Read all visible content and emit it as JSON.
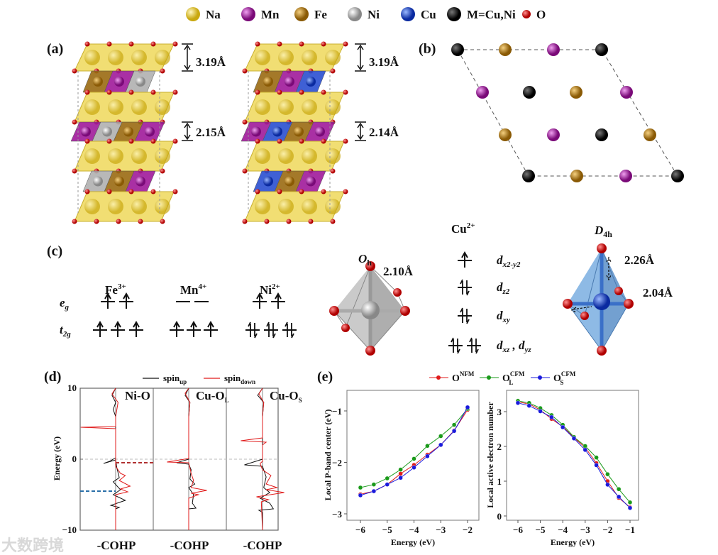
{
  "legend_top": {
    "items": [
      {
        "label": "Na",
        "color": "#e8c62a"
      },
      {
        "label": "Mn",
        "color": "#a0199a"
      },
      {
        "label": "Fe",
        "color": "#b07a10"
      },
      {
        "label": "Ni",
        "color": "#b8b8b8"
      },
      {
        "label": "Cu",
        "color": "#1f4fd8"
      },
      {
        "label": "M=Cu,Ni",
        "color": "#111111"
      },
      {
        "label": "O",
        "color": "#e01b1b"
      }
    ]
  },
  "panel_labels": {
    "a": "(a)",
    "b": "(b)",
    "c": "(c)",
    "d": "(d)",
    "e": "(e)"
  },
  "panel_a": {
    "left": {
      "interlayer": "3.19Å",
      "slab": "2.15Å"
    },
    "right": {
      "interlayer": "3.19Å",
      "slab": "2.14Å"
    }
  },
  "panel_c": {
    "ions": [
      {
        "base": "Fe",
        "charge": "3+"
      },
      {
        "base": "Mn",
        "charge": "4+"
      },
      {
        "base": "Ni",
        "charge": "2+"
      }
    ],
    "eg": {
      "base": "e",
      "sub": "g"
    },
    "t2g": {
      "base": "t",
      "sub": "2g"
    },
    "oh": {
      "base": "O",
      "sub": "h",
      "bond": "2.10Å"
    },
    "cu": {
      "base": "Cu",
      "charge": "2+"
    },
    "orbitals": [
      {
        "base": "d",
        "sub": "x2-y2"
      },
      {
        "base": "d",
        "sub": "z2"
      },
      {
        "base": "d",
        "sub": "xy"
      },
      {
        "base": "d",
        "sub": "xz",
        "sep": " , ",
        "base2": "d",
        "sub2": "yz"
      }
    ],
    "d4h": {
      "base": "D",
      "sub": "4h",
      "bond_axial": "2.26Å",
      "bond_equatorial": "2.04Å"
    }
  },
  "watermark": "大数跨境",
  "chart_data": [
    {
      "type": "line",
      "panel": "d",
      "legend": [
        {
          "base": "spin",
          "sub": "up",
          "color": "#111111"
        },
        {
          "base": "spin",
          "sub": "down",
          "color": "#e01b1b"
        }
      ],
      "ylabel": "Energy (eV)",
      "ylim": [
        -10,
        10
      ],
      "yticks": [
        "10",
        "0",
        "−10"
      ],
      "subplots": [
        {
          "title": "Ni-O",
          "title_sub": "",
          "xlabel": "-COHP",
          "up": [
            [
              0,
              10
            ],
            [
              -0.3,
              9
            ],
            [
              0,
              8
            ],
            [
              -0.2,
              7
            ],
            [
              0,
              6
            ],
            [
              0,
              0.2
            ],
            [
              -0.5,
              -0.3
            ],
            [
              -1,
              -0.6
            ],
            [
              0,
              -0.1
            ],
            [
              0.1,
              -1.2
            ],
            [
              0.3,
              -2.6
            ],
            [
              -0.2,
              -3.2
            ],
            [
              0.4,
              -4.3
            ],
            [
              -0.2,
              -5
            ],
            [
              0.8,
              -5.8
            ],
            [
              -0.4,
              -6.5
            ],
            [
              0.3,
              -6.8
            ],
            [
              0,
              -7
            ],
            [
              0,
              -10
            ]
          ],
          "down": [
            [
              0,
              10
            ],
            [
              -0.3,
              9.2
            ],
            [
              0.2,
              8
            ],
            [
              0,
              6
            ],
            [
              0,
              4.6
            ],
            [
              -2.9,
              4.5
            ],
            [
              0,
              4.3
            ],
            [
              0,
              -1
            ],
            [
              0.4,
              -2
            ],
            [
              0.8,
              -2.3
            ],
            [
              0.3,
              -3
            ],
            [
              1.2,
              -3.8
            ],
            [
              0.4,
              -4.2
            ],
            [
              1,
              -4.6
            ],
            [
              0,
              -5
            ],
            [
              0,
              -10
            ]
          ],
          "dashed_levels": [
            {
              "energy": -0.5,
              "color": "#b03030",
              "side": "right"
            },
            {
              "energy": -4.5,
              "color": "#2a6fa8",
              "side": "left"
            }
          ]
        },
        {
          "title": "Cu-O",
          "title_sub": "L",
          "xlabel": "-COHP",
          "up": [
            [
              0,
              10
            ],
            [
              -0.3,
              9
            ],
            [
              0.1,
              8
            ],
            [
              0,
              6
            ],
            [
              0,
              0
            ],
            [
              -1,
              -0.5
            ],
            [
              0,
              -0.7
            ],
            [
              0.2,
              -1.5
            ],
            [
              0.1,
              -2.8
            ],
            [
              0.5,
              -3.5
            ],
            [
              0,
              -4
            ],
            [
              0.4,
              -5
            ],
            [
              0.3,
              -6.2
            ],
            [
              0.6,
              -6.9
            ],
            [
              0,
              -7
            ],
            [
              0,
              -10
            ]
          ],
          "down": [
            [
              0,
              10
            ],
            [
              -0.3,
              9.3
            ],
            [
              0.1,
              8
            ],
            [
              0,
              6
            ],
            [
              0,
              0.1
            ],
            [
              -1.8,
              -0.4
            ],
            [
              0,
              -0.5
            ],
            [
              0.2,
              -2
            ],
            [
              0.4,
              -3
            ],
            [
              0.2,
              -4
            ],
            [
              1.5,
              -4.4
            ],
            [
              0.2,
              -4.8
            ],
            [
              0.8,
              -5
            ],
            [
              0,
              -5.5
            ],
            [
              0,
              -10
            ]
          ],
          "dashed_levels": []
        },
        {
          "title": "Cu-O",
          "title_sub": "S",
          "xlabel": "-COHP",
          "up": [
            [
              0,
              10
            ],
            [
              -0.4,
              9
            ],
            [
              0.1,
              8
            ],
            [
              0,
              6
            ],
            [
              0,
              0
            ],
            [
              -1.5,
              -0.8
            ],
            [
              0,
              -1
            ],
            [
              0.3,
              -2.5
            ],
            [
              0.1,
              -4
            ],
            [
              0.6,
              -4.7
            ],
            [
              -0.2,
              -5.5
            ],
            [
              0.6,
              -6.2
            ],
            [
              0.9,
              -7
            ],
            [
              -0.3,
              -7.2
            ],
            [
              0,
              -7.5
            ],
            [
              0,
              -10
            ]
          ],
          "down": [
            [
              0,
              10
            ],
            [
              -0.3,
              9.2
            ],
            [
              0.1,
              8
            ],
            [
              0,
              6
            ],
            [
              0,
              3
            ],
            [
              -1.8,
              2.6
            ],
            [
              0.3,
              2.4
            ],
            [
              0,
              2
            ],
            [
              0,
              -0.3
            ],
            [
              -0.2,
              -0.6
            ],
            [
              0,
              -1.5
            ],
            [
              0.7,
              -2.3
            ],
            [
              0.3,
              -3.5
            ],
            [
              1.2,
              -4
            ],
            [
              0.3,
              -4.3
            ],
            [
              1.8,
              -4.7
            ],
            [
              -0.5,
              -5.3
            ],
            [
              0.5,
              -5.7
            ],
            [
              -0.1,
              -6
            ],
            [
              0,
              -10
            ]
          ],
          "dashed_levels": []
        }
      ]
    },
    {
      "type": "line",
      "panel": "e-left",
      "xlabel": "Energy (eV)",
      "ylabel": "Local P-band center (eV)",
      "xlim": [
        -6.5,
        -1.6
      ],
      "ylim": [
        -3.1,
        -0.6
      ],
      "xticks": [
        -6,
        -5,
        -4,
        -3,
        -2
      ],
      "yticks": [
        -1,
        -2,
        -3
      ],
      "x": [
        -6,
        -5.5,
        -5,
        -4.5,
        -4,
        -3.5,
        -3,
        -2.5,
        -2
      ],
      "series": [
        {
          "name": "O",
          "sup": "NFM",
          "sub": "",
          "color": "#e01b1b",
          "values": [
            -2.62,
            -2.56,
            -2.43,
            -2.22,
            -2.05,
            -1.85,
            -1.66,
            -1.38,
            -0.98
          ]
        },
        {
          "name": "O",
          "sup": "CFM",
          "sub": "L",
          "color": "#1a9a1a",
          "values": [
            -2.49,
            -2.43,
            -2.31,
            -2.14,
            -1.93,
            -1.68,
            -1.49,
            -1.27,
            -0.96
          ]
        },
        {
          "name": "O",
          "sup": "CFM",
          "sub": "S",
          "color": "#1a1adc",
          "values": [
            -2.64,
            -2.56,
            -2.43,
            -2.3,
            -2.1,
            -1.88,
            -1.66,
            -1.39,
            -0.93
          ]
        }
      ],
      "legend_position": "top-center"
    },
    {
      "type": "line",
      "panel": "e-right",
      "xlabel": "Energy (eV)",
      "ylabel": "Local active electron number",
      "xlim": [
        -6.5,
        -0.6
      ],
      "ylim": [
        -0.1,
        3.5
      ],
      "xticks": [
        -6,
        -5,
        -4,
        -3,
        -2,
        -1
      ],
      "yticks": [
        0,
        1,
        2,
        3
      ],
      "x": [
        -6,
        -5.5,
        -5,
        -4.5,
        -4,
        -3.5,
        -3,
        -2.5,
        -2,
        -1.5,
        -1
      ],
      "series": [
        {
          "name": "O",
          "sup": "NFM",
          "sub": "",
          "color": "#e01b1b",
          "values": [
            3.28,
            3.22,
            3.05,
            2.79,
            2.57,
            2.25,
            1.97,
            1.52,
            1.0,
            0.52,
            0.25
          ]
        },
        {
          "name": "O",
          "sup": "CFM",
          "sub": "L",
          "color": "#1a9a1a",
          "values": [
            3.31,
            3.25,
            3.1,
            2.9,
            2.62,
            2.27,
            2.01,
            1.68,
            1.2,
            0.77,
            0.39
          ]
        },
        {
          "name": "O",
          "sup": "CFM",
          "sub": "S",
          "color": "#1a1adc",
          "values": [
            3.25,
            3.17,
            3.01,
            2.84,
            2.55,
            2.23,
            1.9,
            1.46,
            0.9,
            0.55,
            0.23
          ]
        }
      ]
    }
  ]
}
